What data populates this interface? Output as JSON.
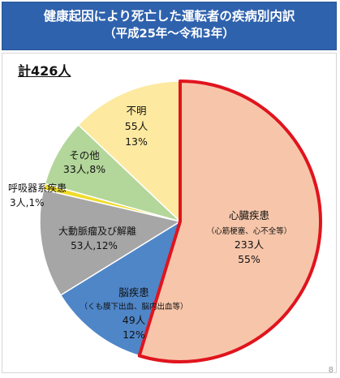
{
  "title": {
    "line1": "健康起因により死亡した運転者の疾病別内訳",
    "line2": "（平成25年～令和3年）"
  },
  "total_label": "計426人",
  "page_number": "8",
  "colors": {
    "title_bg": "#2f62ad",
    "highlight_border": "#e0141e"
  },
  "chart_data": {
    "type": "pie",
    "total": 426,
    "slices": [
      {
        "name": "心臓疾患",
        "sub": "（心筋梗塞、心不全等）",
        "count": "233人",
        "pct": "55%",
        "value": 233,
        "color": "#f7c6aa",
        "highlight": true
      },
      {
        "name": "脳疾患",
        "sub": "（くも膜下出血、脳内出血等）",
        "count": "49人",
        "pct": "12%",
        "value": 49,
        "color": "#4f86c8",
        "highlight": false
      },
      {
        "name": "大動脈瘤及び解離",
        "sub": "",
        "count": "53人,12%",
        "pct": "",
        "value": 53,
        "color": "#a6a6a6",
        "highlight": false
      },
      {
        "name": "呼吸器系疾患",
        "sub": "",
        "count": "3人,1%",
        "pct": "",
        "value": 3,
        "color": "#f0dc28",
        "highlight": false
      },
      {
        "name": "その他",
        "sub": "",
        "count": "33人,8%",
        "pct": "",
        "value": 33,
        "color": "#b3d69a",
        "highlight": false
      },
      {
        "name": "不明",
        "sub": "",
        "count": "55人",
        "pct": "13%",
        "value": 55,
        "color": "#fde9a0",
        "highlight": false
      }
    ]
  }
}
